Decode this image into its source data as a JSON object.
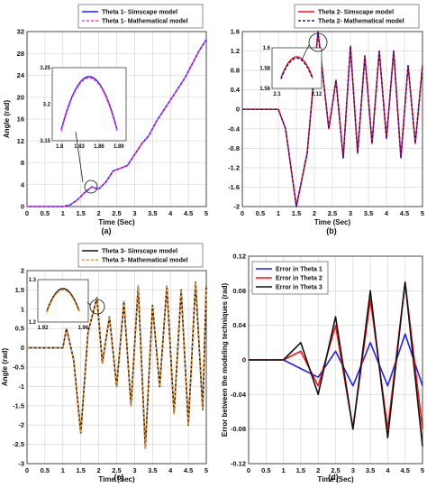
{
  "chart_data": [
    {
      "type": "line",
      "panel": "(a)",
      "xlabel": "Time (Sec)",
      "ylabel": "Angle (rad)",
      "xlim": [
        0,
        5
      ],
      "ylim": [
        0,
        32
      ],
      "xticks": [
        "0",
        "0.5",
        "1",
        "1.5",
        "2",
        "2.5",
        "3",
        "3.5",
        "4",
        "4.5",
        "5"
      ],
      "yticks": [
        "0",
        "4",
        "8",
        "12",
        "16",
        "20",
        "24",
        "28",
        "32"
      ],
      "legend_position": "top-right",
      "series": [
        {
          "name": "Theta 1- Simscape model",
          "color": "#1f1fff",
          "style": "solid",
          "x": [
            0,
            1,
            1.2,
            1.4,
            1.6,
            1.8,
            1.9,
            2.0,
            2.2,
            2.4,
            2.6,
            2.8,
            3.0,
            3.2,
            3.4,
            3.6,
            3.8,
            4.0,
            4.2,
            4.4,
            4.6,
            4.8,
            5.0
          ],
          "y": [
            0,
            0,
            0.3,
            1.2,
            2.5,
            3.6,
            3.4,
            3.2,
            4.5,
            6.5,
            7.0,
            7.5,
            9.5,
            11.5,
            13.0,
            15.5,
            17.5,
            19.5,
            21.5,
            23.5,
            26.0,
            28.5,
            30.5
          ]
        },
        {
          "name": "Theta 1- Mathematical model",
          "color": "#ff3bd6",
          "style": "dashed",
          "x": [
            0,
            1,
            1.2,
            1.4,
            1.6,
            1.8,
            1.9,
            2.0,
            2.2,
            2.4,
            2.6,
            2.8,
            3.0,
            3.2,
            3.4,
            3.6,
            3.8,
            4.0,
            4.2,
            4.4,
            4.6,
            4.8,
            5.0
          ],
          "y": [
            0,
            0,
            0.3,
            1.2,
            2.5,
            3.6,
            3.4,
            3.2,
            4.5,
            6.5,
            7.0,
            7.5,
            9.5,
            11.5,
            13.0,
            15.5,
            17.5,
            19.5,
            21.5,
            23.5,
            26.0,
            28.5,
            30.5
          ]
        }
      ],
      "inset": {
        "xlim": [
          1.8,
          1.89
        ],
        "ylim": [
          3.15,
          3.25
        ],
        "xticks": [
          "1.8",
          "1.83",
          "1.86",
          "1.89"
        ],
        "yticks": [
          "3.15",
          "3.2",
          "3.25"
        ]
      }
    },
    {
      "type": "line",
      "panel": "(b)",
      "xlabel": "Time (Sec)",
      "ylabel": "",
      "xlim": [
        0,
        5
      ],
      "ylim": [
        -2,
        1.6
      ],
      "xticks": [
        "0",
        "0.5",
        "1",
        "1.5",
        "2",
        "2.5",
        "3",
        "3.5",
        "4",
        "4.5",
        "5"
      ],
      "yticks": [
        "-2",
        "-1.6",
        "-1.2",
        "-0.8",
        "-0.4",
        "0",
        "0.4",
        "0.8",
        "1.2",
        "1.6"
      ],
      "legend_position": "top-right",
      "series": [
        {
          "name": "Theta 2- Simscape model",
          "color": "#ff1010",
          "style": "solid",
          "x": [
            0,
            1,
            1.2,
            1.5,
            1.8,
            2.1,
            2.4,
            2.6,
            2.8,
            3.0,
            3.2,
            3.4,
            3.6,
            3.8,
            4.0,
            4.2,
            4.4,
            4.6,
            4.8,
            5.0
          ],
          "y": [
            0,
            0,
            -0.4,
            -2.0,
            -0.9,
            1.6,
            -0.4,
            0.6,
            -1.0,
            1.3,
            -0.9,
            1.1,
            -0.7,
            1.2,
            -0.6,
            1.2,
            -1.0,
            0.9,
            -0.7,
            0.9
          ]
        },
        {
          "name": "Theta 2- Mathematical model",
          "color": "#1a1aa0",
          "style": "dashed",
          "x": [
            0,
            1,
            1.2,
            1.5,
            1.8,
            2.1,
            2.4,
            2.6,
            2.8,
            3.0,
            3.2,
            3.4,
            3.6,
            3.8,
            4.0,
            4.2,
            4.4,
            4.6,
            4.8,
            5.0
          ],
          "y": [
            0,
            0,
            -0.4,
            -2.0,
            -0.9,
            1.6,
            -0.4,
            0.6,
            -1.0,
            1.3,
            -0.9,
            1.1,
            -0.7,
            1.2,
            -0.6,
            1.2,
            -1.0,
            0.9,
            -0.7,
            0.9
          ]
        }
      ],
      "inset": {
        "xlim": [
          2.09,
          2.13
        ],
        "ylim": [
          1.56,
          1.6
        ],
        "xticks": [
          "2.1",
          "2.12"
        ],
        "yticks": [
          "1.56",
          "1.58",
          "1.6"
        ]
      }
    },
    {
      "type": "line",
      "panel": "(c)",
      "xlabel": "Time (Sec)",
      "ylabel": "Angle (rad)",
      "xlim": [
        0,
        5
      ],
      "ylim": [
        -3,
        2
      ],
      "xticks": [
        "0",
        "0.5",
        "1",
        "1.5",
        "2",
        "2.5",
        "3",
        "3.5",
        "4",
        "4.5",
        "5"
      ],
      "yticks": [
        "-3",
        "-2.5",
        "-2",
        "-1.5",
        "-1",
        "-0.5",
        "0",
        "0.5",
        "1",
        "1.5",
        "2"
      ],
      "legend_position": "top-right",
      "series": [
        {
          "name": "Theta 3- Simscape model",
          "color": "#111111",
          "style": "solid",
          "x": [
            0,
            1,
            1.1,
            1.3,
            1.5,
            1.7,
            1.95,
            2.1,
            2.3,
            2.5,
            2.7,
            2.9,
            3.1,
            3.3,
            3.5,
            3.7,
            3.9,
            4.1,
            4.3,
            4.5,
            4.7,
            4.9,
            5.0
          ],
          "y": [
            0,
            0,
            0.5,
            -0.3,
            -2.2,
            0.4,
            1.3,
            -0.4,
            0.8,
            -1.0,
            1.2,
            -1.5,
            1.6,
            -2.6,
            1.1,
            -1.0,
            1.6,
            -1.7,
            1.5,
            -2.0,
            1.7,
            -1.6,
            1.6
          ]
        },
        {
          "name": "Theta 3- Mathematical model",
          "color": "#ff9a20",
          "style": "dashed",
          "x": [
            0,
            1,
            1.1,
            1.3,
            1.5,
            1.7,
            1.95,
            2.1,
            2.3,
            2.5,
            2.7,
            2.9,
            3.1,
            3.3,
            3.5,
            3.7,
            3.9,
            4.1,
            4.3,
            4.5,
            4.7,
            4.9,
            5.0
          ],
          "y": [
            0,
            0,
            0.5,
            -0.3,
            -2.2,
            0.4,
            1.3,
            -0.4,
            0.8,
            -1.0,
            1.2,
            -1.5,
            1.6,
            -2.6,
            1.1,
            -1.0,
            1.6,
            -1.7,
            1.5,
            -2.0,
            1.7,
            -1.6,
            1.6
          ]
        }
      ],
      "inset": {
        "xlim": [
          1.9,
          1.97
        ],
        "ylim": [
          1.2,
          1.3
        ],
        "xticks": [
          "1.92",
          "1.96"
        ],
        "yticks": [
          "1.2",
          "1.3"
        ]
      }
    },
    {
      "type": "line",
      "panel": "(d)",
      "xlabel": "Time (Sec)",
      "ylabel": "Error between the modeling techniques (rad)",
      "xlim": [
        0,
        5
      ],
      "ylim": [
        -0.12,
        0.12
      ],
      "xticks": [
        "0",
        "0.5",
        "1",
        "1.5",
        "2",
        "2.5",
        "3",
        "3.5",
        "4",
        "4.5",
        "5"
      ],
      "yticks": [
        "-0.12",
        "-0.08",
        "-0.04",
        "0",
        "0.04",
        "0.08",
        "0.12"
      ],
      "legend_position": "top-left",
      "series": [
        {
          "name": "Error in Theta 1",
          "color": "#1f1fff",
          "x": [
            0,
            1,
            1.5,
            2,
            2.5,
            3,
            3.5,
            4,
            4.5,
            5
          ],
          "y": [
            0,
            0,
            -0.01,
            -0.02,
            0.01,
            -0.03,
            0.02,
            -0.03,
            0.03,
            -0.03
          ]
        },
        {
          "name": "Error in Theta 2",
          "color": "#ff1010",
          "x": [
            0,
            1,
            1.5,
            2,
            2.5,
            3,
            3.5,
            4,
            4.5,
            5
          ],
          "y": [
            0,
            0,
            0.01,
            -0.03,
            0.04,
            -0.08,
            0.07,
            -0.08,
            0.09,
            -0.08
          ]
        },
        {
          "name": "Error in Theta 3",
          "color": "#111111",
          "x": [
            0,
            1,
            1.5,
            2,
            2.5,
            3,
            3.5,
            4,
            4.5,
            5
          ],
          "y": [
            0,
            0,
            0.02,
            -0.04,
            0.05,
            -0.08,
            0.08,
            -0.09,
            0.09,
            -0.1
          ]
        }
      ]
    }
  ]
}
